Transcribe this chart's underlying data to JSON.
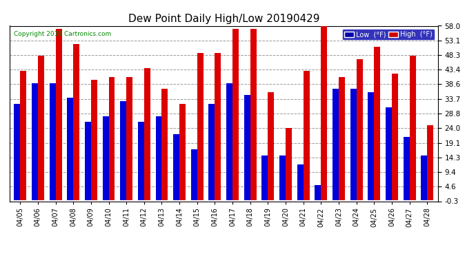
{
  "title": "Dew Point Daily High/Low 20190429",
  "copyright": "Copyright 2019 Cartronics.com",
  "dates": [
    "04/05",
    "04/06",
    "04/07",
    "04/08",
    "04/09",
    "04/10",
    "04/11",
    "04/12",
    "04/13",
    "04/14",
    "04/15",
    "04/16",
    "04/17",
    "04/18",
    "04/19",
    "04/20",
    "04/21",
    "04/22",
    "04/23",
    "04/24",
    "04/25",
    "04/26",
    "04/27",
    "04/28"
  ],
  "low_values": [
    32,
    39,
    39,
    34,
    26,
    28,
    33,
    26,
    28,
    22,
    17,
    32,
    39,
    35,
    15,
    15,
    12,
    5,
    37,
    37,
    36,
    31,
    21,
    15
  ],
  "high_values": [
    43,
    48,
    57,
    52,
    40,
    41,
    41,
    44,
    37,
    32,
    49,
    49,
    57,
    57,
    36,
    24,
    43,
    59,
    41,
    47,
    51,
    42,
    48,
    25
  ],
  "ylim_min": -0.3,
  "ylim_max": 58.0,
  "yticks": [
    -0.3,
    4.6,
    9.4,
    14.3,
    19.1,
    24.0,
    28.8,
    33.7,
    38.6,
    43.4,
    48.3,
    53.1,
    58.0
  ],
  "bar_color_low": "#0000dd",
  "bar_color_high": "#dd0000",
  "background_color": "#ffffff",
  "grid_color": "#999999",
  "title_fontsize": 11,
  "copyright_color": "#008800",
  "legend_low_label": "Low  (°F)",
  "legend_high_label": "High  (°F)",
  "legend_bg": "#0000aa",
  "legend_high_bg": "#cc0000"
}
